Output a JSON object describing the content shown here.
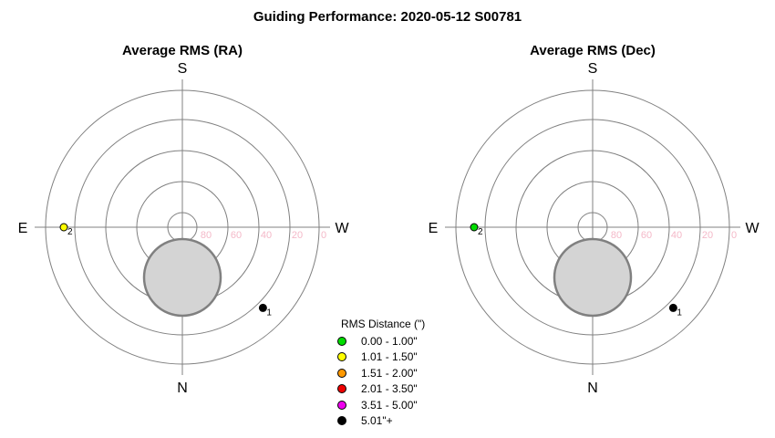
{
  "chart_title": "Guiding Performance: 2020-05-12 S00781",
  "chart_data": [
    {
      "type": "polar-scatter",
      "title": "Average RMS (RA)",
      "directions": {
        "top": "S",
        "bottom": "N",
        "left": "E",
        "right": "W"
      },
      "radial_ticks": [
        "80",
        "60",
        "40",
        "20",
        "0"
      ],
      "points": [
        {
          "label": "1",
          "altitude": 15,
          "azimuth": "NW",
          "rms_category": "5.01\"+",
          "color": "#000000"
        },
        {
          "label": "2",
          "altitude": 12,
          "azimuth": "E",
          "rms_category": "1.01 - 1.50\"",
          "color": "#ffff00"
        }
      ]
    },
    {
      "type": "polar-scatter",
      "title": "Average RMS (Dec)",
      "directions": {
        "top": "S",
        "bottom": "N",
        "left": "E",
        "right": "W"
      },
      "radial_ticks": [
        "80",
        "60",
        "40",
        "20",
        "0"
      ],
      "points": [
        {
          "label": "1",
          "altitude": 15,
          "azimuth": "NW",
          "rms_category": "5.01\"+",
          "color": "#000000"
        },
        {
          "label": "2",
          "altitude": 12,
          "azimuth": "E",
          "rms_category": "0.00 - 1.00\"",
          "color": "#00dd00"
        }
      ]
    }
  ],
  "legend": {
    "title": "RMS Distance (\")",
    "items": [
      {
        "label": "0.00 - 1.00\"",
        "color": "#00dd00"
      },
      {
        "label": "1.01 - 1.50\"",
        "color": "#ffff00"
      },
      {
        "label": "1.51 - 2.00\"",
        "color": "#ff9900"
      },
      {
        "label": "2.01 - 3.50\"",
        "color": "#ee0000"
      },
      {
        "label": "3.51 - 5.00\"",
        "color": "#ee00ee"
      },
      {
        "label": "5.01\"+",
        "color": "#000000"
      }
    ]
  }
}
